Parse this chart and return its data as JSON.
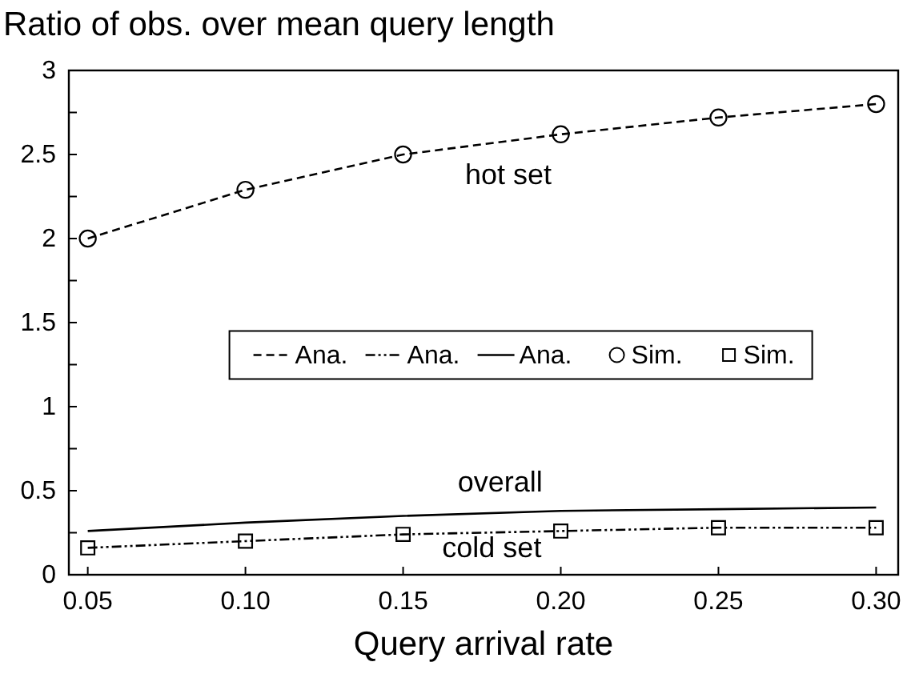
{
  "chart_data": {
    "type": "line",
    "ylabel": "Ratio of obs. over mean query length",
    "xlabel": "Query arrival rate",
    "x": [
      0.05,
      0.1,
      0.15,
      0.2,
      0.25,
      0.3
    ],
    "xlim": [
      0.044,
      0.307
    ],
    "xticks": [
      {
        "value": 0.05,
        "label": "0.05"
      },
      {
        "value": 0.1,
        "label": "0.10"
      },
      {
        "value": 0.15,
        "label": "0.15"
      },
      {
        "value": 0.2,
        "label": "0.20"
      },
      {
        "value": 0.25,
        "label": "0.25"
      },
      {
        "value": 0.3,
        "label": "0.30"
      }
    ],
    "ylim": [
      0,
      3
    ],
    "yticks": [
      0,
      {
        "value": 0.25,
        "label": null
      },
      0.5,
      {
        "value": 0.75,
        "label": null
      },
      1,
      {
        "value": 1.25,
        "label": null
      },
      1.5,
      {
        "value": 1.75,
        "label": null
      },
      2,
      {
        "value": 2.25,
        "label": null
      },
      2.5,
      {
        "value": 2.75,
        "label": null
      },
      3
    ],
    "series": [
      {
        "name": "Ana.",
        "color": "#000000",
        "line_style": "dashed",
        "marker": "none",
        "values": [
          2.0,
          2.29,
          2.5,
          2.62,
          2.72,
          2.8
        ]
      },
      {
        "name": "Ana.",
        "color": "#000000",
        "line_style": "dotted",
        "marker": "none",
        "values": [
          0.16,
          0.2,
          0.24,
          0.26,
          0.28,
          0.28
        ]
      },
      {
        "name": "Ana.",
        "color": "#000000",
        "line_style": "solid",
        "marker": "none",
        "values": [
          0.26,
          0.31,
          0.35,
          0.38,
          0.39,
          0.4
        ]
      },
      {
        "name": "Sim.",
        "type": "scatter",
        "color": "#000000",
        "marker": "circle",
        "values": [
          2.0,
          2.29,
          2.5,
          2.62,
          2.72,
          2.8
        ]
      },
      {
        "name": "Sim.",
        "type": "scatter",
        "color": "#000000",
        "marker": "square",
        "values": [
          0.16,
          0.2,
          0.24,
          0.26,
          0.28,
          0.28
        ]
      }
    ],
    "annotations": [
      "hot set",
      "overall",
      "cold set"
    ],
    "legend": "center",
    "grid": false
  }
}
